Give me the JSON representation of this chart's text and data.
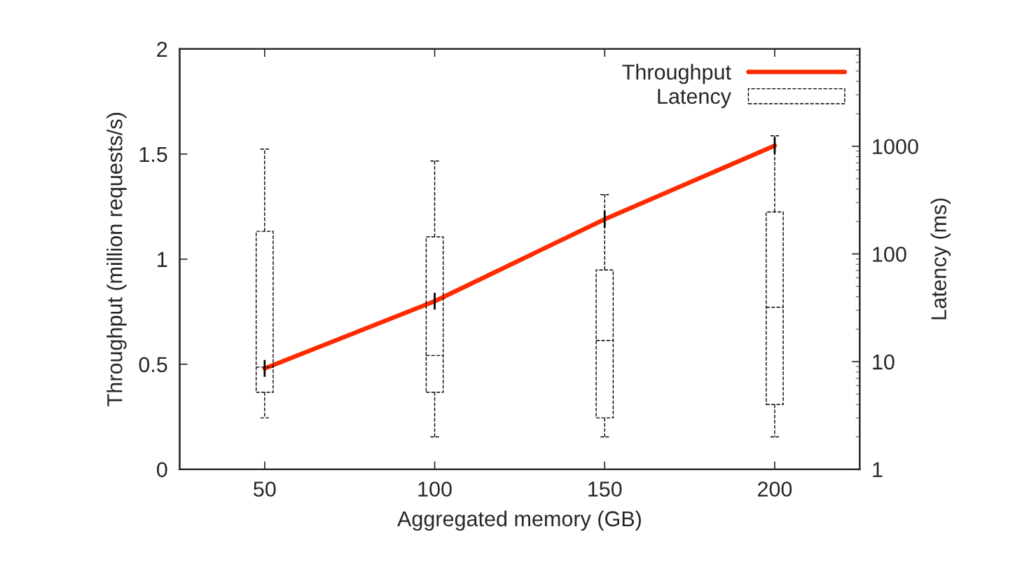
{
  "chart_data": {
    "type": "line",
    "xlabel": "Aggregated memory (GB)",
    "ylabel": "Throughput (million requests/s)",
    "y2label": "Latency (ms)",
    "x": [
      50,
      100,
      150,
      200
    ],
    "xlim": [
      25,
      225
    ],
    "xticks": [
      50,
      100,
      150,
      200
    ],
    "ylim": [
      0,
      2
    ],
    "yticks": [
      0,
      0.5,
      1,
      1.5,
      2
    ],
    "y2lim": [
      1,
      8000
    ],
    "y2ticks": [
      1,
      10,
      100,
      1000
    ],
    "log": "y2",
    "grid": false,
    "legend": "top right",
    "series": [
      {
        "name": "Throughput",
        "color": "#ff2a00",
        "values": [
          0.48,
          0.8,
          1.19,
          1.54
        ],
        "errors": [
          0.04,
          0.04,
          0.04,
          0.04
        ]
      },
      {
        "name": "Latency",
        "type": "box",
        "axis": "y2",
        "color": "#000000",
        "line_style": "dashed",
        "boxes": [
          {
            "low": 3.0,
            "q1": 5.2,
            "median": 8.9,
            "q3": 162,
            "high": 940
          },
          {
            "low": 2.0,
            "q1": 5.2,
            "median": 11.4,
            "q3": 144,
            "high": 730
          },
          {
            "low": 2.0,
            "q1": 3.0,
            "median": 15.7,
            "q3": 71,
            "high": 355
          },
          {
            "low": 2.0,
            "q1": 4.0,
            "median": 32,
            "q3": 245,
            "high": 1250
          }
        ]
      }
    ]
  }
}
